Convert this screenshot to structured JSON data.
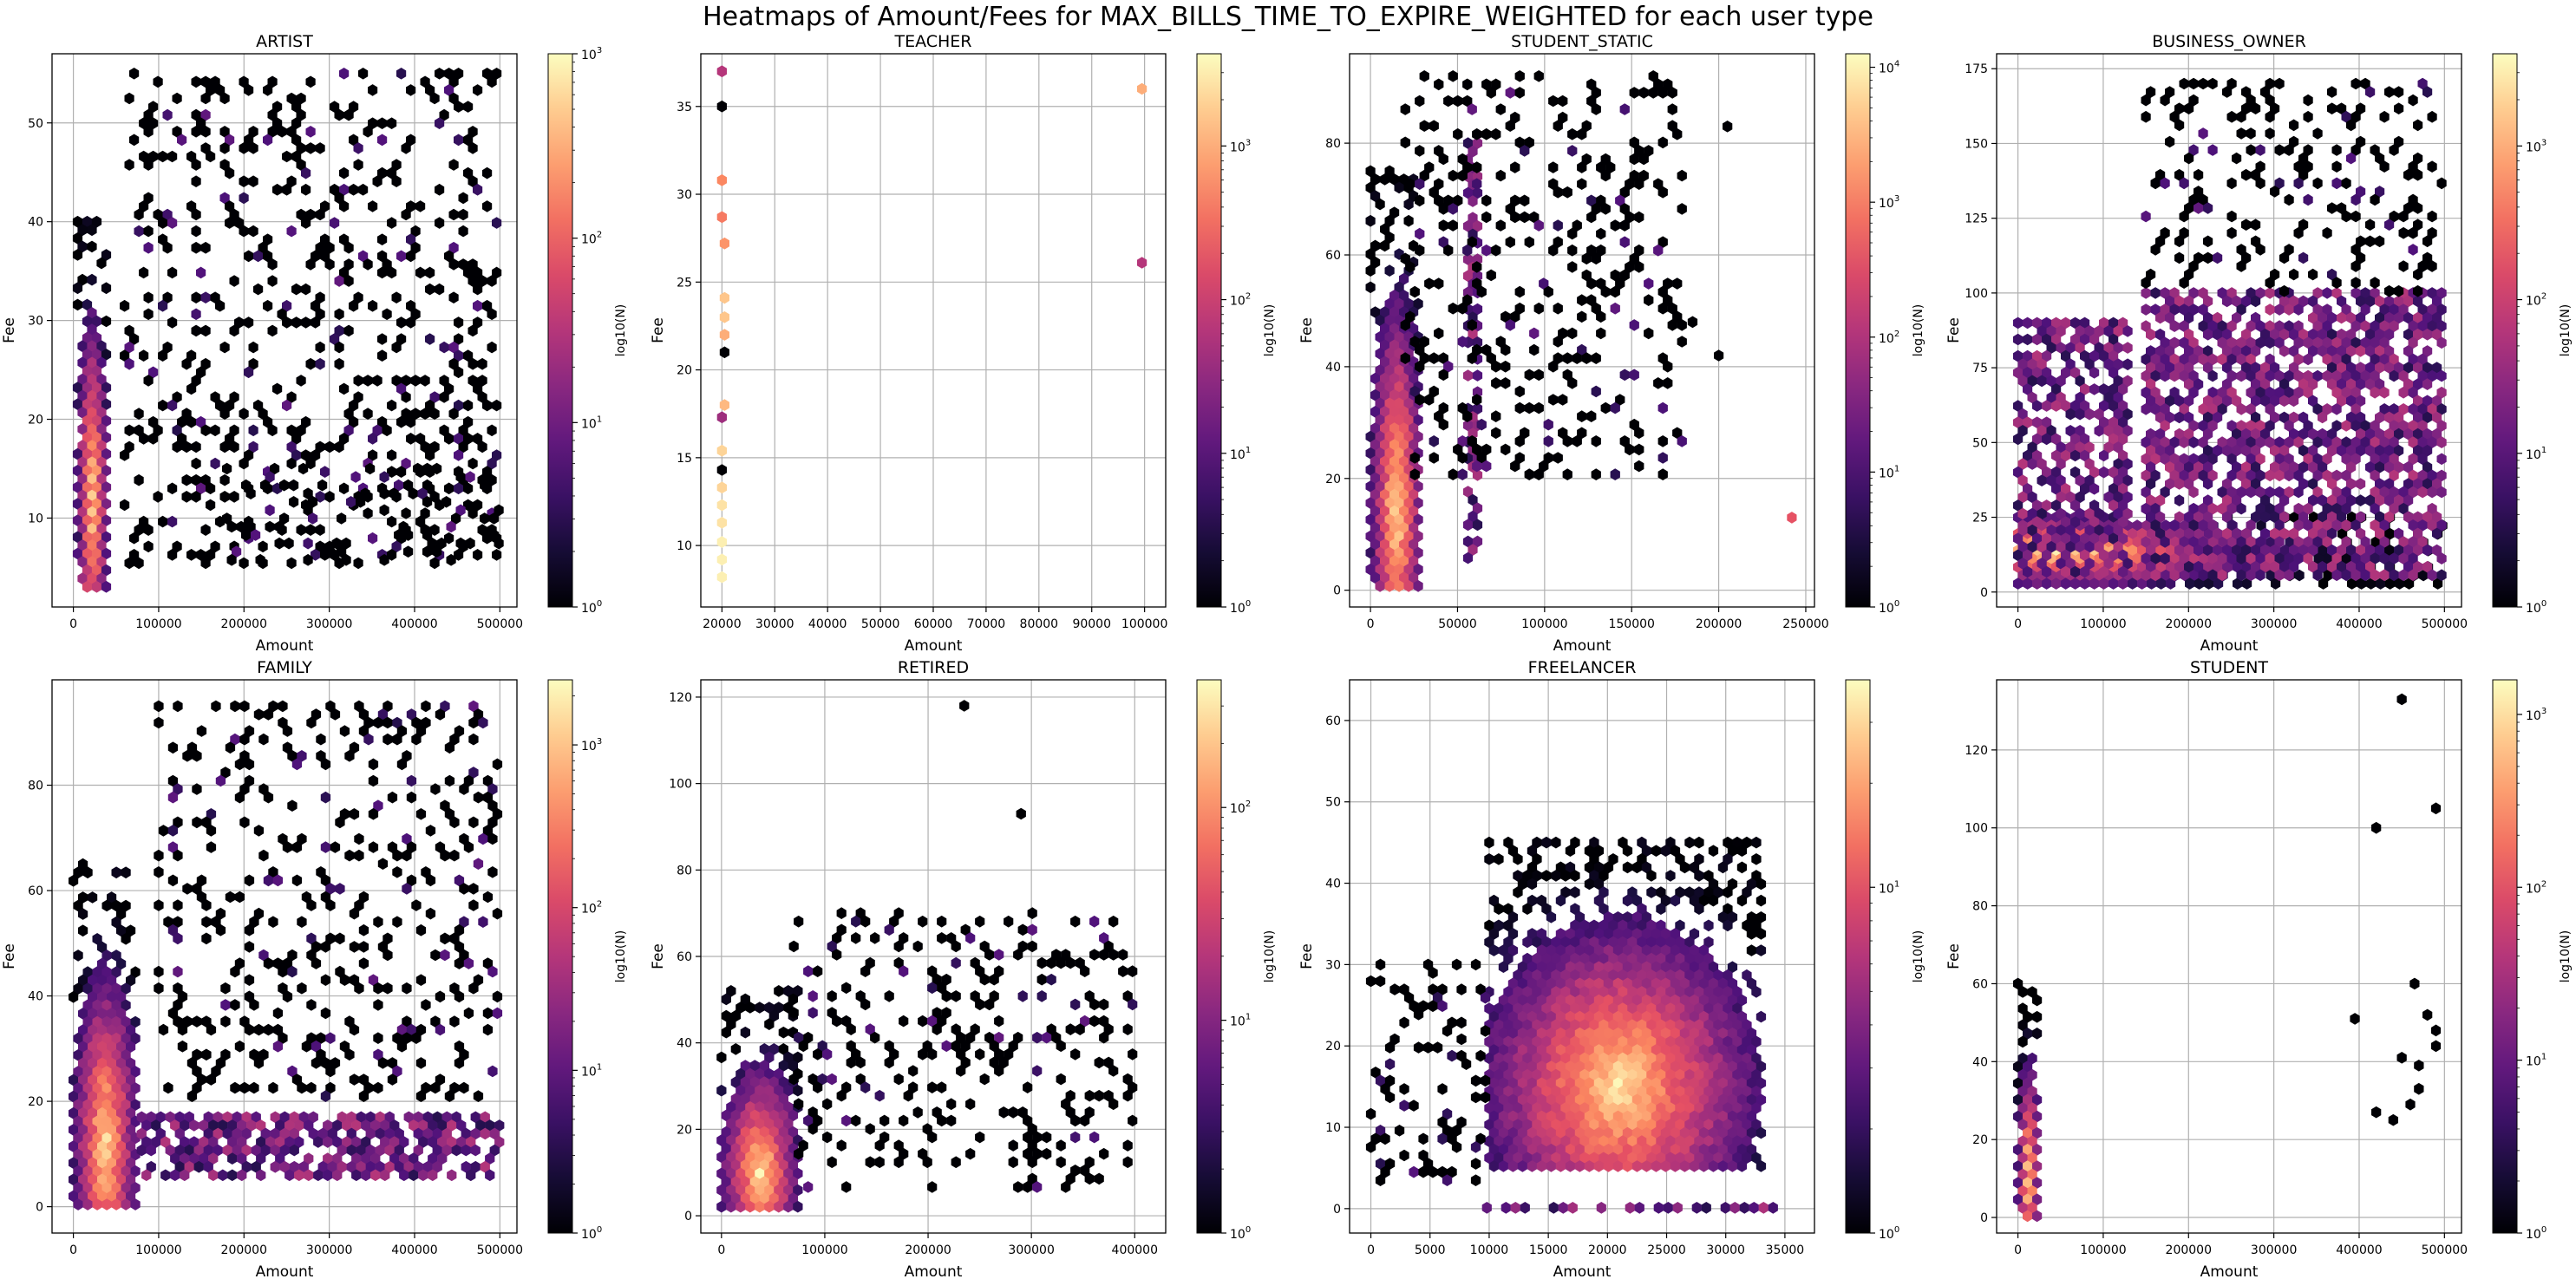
{
  "suptitle": "Heatmaps of Amount/Fees for MAX_BILLS_TIME_TO_EXPIRE_WEIGHTED for each user type",
  "chart_data": [
    {
      "type": "heatmap",
      "subtype": "hexbin",
      "title": "ARTIST",
      "xlabel": "Amount",
      "ylabel": "Fee",
      "colorbar_label": "log10(N)",
      "xlim": [
        -25000,
        520000
      ],
      "ylim": [
        1,
        57
      ],
      "xticks": [
        0,
        100000,
        200000,
        300000,
        400000,
        500000
      ],
      "yticks": [
        10,
        20,
        30,
        40,
        50
      ],
      "cbar_log_max": 3,
      "cbar_ticks": [
        "10^0",
        "10^1",
        "10^2",
        "10^3"
      ],
      "grid": true,
      "regions": [
        {
          "x": [
            5000,
            40000
          ],
          "y": [
            3,
            40
          ],
          "density": "high",
          "peak_y": 12
        },
        {
          "x": [
            60000,
            500000
          ],
          "y": [
            5,
            55
          ],
          "density": "sparse"
        },
        {
          "x": [
            180000,
            500000
          ],
          "y": [
            5,
            15
          ],
          "density": "sparse"
        }
      ]
    },
    {
      "type": "heatmap",
      "subtype": "hexbin",
      "title": "TEACHER",
      "xlabel": "Amount",
      "ylabel": "Fee",
      "colorbar_label": "log10(N)",
      "xlim": [
        16000,
        104000
      ],
      "ylim": [
        6.5,
        38
      ],
      "xticks": [
        20000,
        30000,
        40000,
        50000,
        60000,
        70000,
        80000,
        90000,
        100000
      ],
      "yticks": [
        10,
        15,
        20,
        25,
        30,
        35
      ],
      "cbar_log_max": 3.6,
      "cbar_ticks": [
        "10^0",
        "10^1",
        "10^2",
        "10^3"
      ],
      "grid": true,
      "points": [
        {
          "x": 20000,
          "y": 37,
          "log10n": 1.8
        },
        {
          "x": 20000,
          "y": 35,
          "log10n": 0
        },
        {
          "x": 20000,
          "y": 30.8,
          "log10n": 2.7
        },
        {
          "x": 20000,
          "y": 28.7,
          "log10n": 2.6
        },
        {
          "x": 20500,
          "y": 27.2,
          "log10n": 2.8
        },
        {
          "x": 20500,
          "y": 24.1,
          "log10n": 3.2
        },
        {
          "x": 20500,
          "y": 23,
          "log10n": 3.2
        },
        {
          "x": 20500,
          "y": 22,
          "log10n": 3.0
        },
        {
          "x": 20500,
          "y": 21,
          "log10n": 0
        },
        {
          "x": 20500,
          "y": 18,
          "log10n": 3.1
        },
        {
          "x": 20000,
          "y": 17.3,
          "log10n": 1.6
        },
        {
          "x": 20000,
          "y": 15.4,
          "log10n": 3.3
        },
        {
          "x": 20000,
          "y": 14.3,
          "log10n": 0
        },
        {
          "x": 20000,
          "y": 13.3,
          "log10n": 3.3
        },
        {
          "x": 20000,
          "y": 12.3,
          "log10n": 3.4
        },
        {
          "x": 20000,
          "y": 11.3,
          "log10n": 3.4
        },
        {
          "x": 20000,
          "y": 10.2,
          "log10n": 3.5
        },
        {
          "x": 20000,
          "y": 9.2,
          "log10n": 3.5
        },
        {
          "x": 20000,
          "y": 8.2,
          "log10n": 3.5
        },
        {
          "x": 99500,
          "y": 36,
          "log10n": 3.0
        },
        {
          "x": 99500,
          "y": 26.1,
          "log10n": 1.8
        }
      ]
    },
    {
      "type": "heatmap",
      "subtype": "hexbin",
      "title": "STUDENT_STATIC",
      "xlabel": "Amount",
      "ylabel": "Fee",
      "colorbar_label": "log10(N)",
      "xlim": [
        -12000,
        255000
      ],
      "ylim": [
        -3,
        96
      ],
      "xticks": [
        0,
        50000,
        100000,
        150000,
        200000,
        250000
      ],
      "yticks": [
        0,
        20,
        40,
        60,
        80
      ],
      "cbar_log_max": 4.1,
      "cbar_ticks": [
        "10^0",
        "10^1",
        "10^2",
        "10^3",
        "10^4"
      ],
      "grid": true,
      "regions": [
        {
          "x": [
            0,
            30000
          ],
          "y": [
            0,
            75
          ],
          "density": "high",
          "peak_y": 15
        },
        {
          "x": [
            56000,
            62000
          ],
          "y": [
            5,
            80
          ],
          "density": "medium"
        },
        {
          "x": [
            20000,
            180000
          ],
          "y": [
            20,
            92
          ],
          "density": "sparse"
        }
      ],
      "points": [
        {
          "x": 205000,
          "y": 83,
          "log10n": 0
        },
        {
          "x": 200000,
          "y": 42,
          "log10n": 0
        },
        {
          "x": 185000,
          "y": 48,
          "log10n": 0
        },
        {
          "x": 242000,
          "y": 13,
          "log10n": 2.6
        }
      ]
    },
    {
      "type": "heatmap",
      "subtype": "hexbin",
      "title": "BUSINESS_OWNER",
      "xlabel": "Amount",
      "ylabel": "Fee",
      "colorbar_label": "log10(N)",
      "xlim": [
        -25000,
        520000
      ],
      "ylim": [
        -5,
        180
      ],
      "xticks": [
        0,
        100000,
        200000,
        300000,
        400000,
        500000
      ],
      "yticks": [
        0,
        25,
        50,
        75,
        100,
        125,
        150,
        175
      ],
      "cbar_log_max": 3.6,
      "cbar_ticks": [
        "10^0",
        "10^1",
        "10^2",
        "10^3"
      ],
      "grid": true,
      "regions": [
        {
          "x": [
            0,
            500000
          ],
          "y": [
            2,
            25
          ],
          "density": "high",
          "peak_x": 50000
        },
        {
          "x": [
            0,
            130000
          ],
          "y": [
            5,
            90
          ],
          "density": "medium"
        },
        {
          "x": [
            150000,
            500000
          ],
          "y": [
            5,
            100
          ],
          "density": "medium"
        },
        {
          "x": [
            150000,
            500000
          ],
          "y": [
            100,
            170
          ],
          "density": "sparse"
        }
      ]
    },
    {
      "type": "heatmap",
      "subtype": "hexbin",
      "title": "FAMILY",
      "xlabel": "Amount",
      "ylabel": "Fee",
      "colorbar_label": "log10(N)",
      "xlim": [
        -25000,
        520000
      ],
      "ylim": [
        -5,
        100
      ],
      "xticks": [
        0,
        100000,
        200000,
        300000,
        400000,
        500000
      ],
      "yticks": [
        0,
        20,
        40,
        60,
        80
      ],
      "cbar_log_max": 3.4,
      "cbar_ticks": [
        "10^0",
        "10^1",
        "10^2",
        "10^3"
      ],
      "grid": true,
      "regions": [
        {
          "x": [
            0,
            75000
          ],
          "y": [
            0,
            65
          ],
          "density": "high",
          "peak_y": 12
        },
        {
          "x": [
            80000,
            500000
          ],
          "y": [
            5,
            17
          ],
          "density": "medium"
        },
        {
          "x": [
            100000,
            500000
          ],
          "y": [
            20,
            95
          ],
          "density": "sparse"
        }
      ]
    },
    {
      "type": "heatmap",
      "subtype": "hexbin",
      "title": "RETIRED",
      "xlabel": "Amount",
      "ylabel": "Fee",
      "colorbar_label": "log10(N)",
      "xlim": [
        -20000,
        430000
      ],
      "ylim": [
        -4,
        124
      ],
      "xticks": [
        0,
        100000,
        200000,
        300000,
        400000
      ],
      "yticks": [
        0,
        20,
        40,
        60,
        80,
        100,
        120
      ],
      "cbar_log_max": 2.6,
      "cbar_ticks": [
        "10^0",
        "10^1",
        "10^2"
      ],
      "grid": true,
      "regions": [
        {
          "x": [
            0,
            75000
          ],
          "y": [
            2,
            52
          ],
          "density": "high",
          "peak_y": 10
        },
        {
          "x": [
            70000,
            400000
          ],
          "y": [
            5,
            70
          ],
          "density": "sparse"
        }
      ],
      "points": [
        {
          "x": 235000,
          "y": 118,
          "log10n": 0
        },
        {
          "x": 290000,
          "y": 93,
          "log10n": 0
        }
      ]
    },
    {
      "type": "heatmap",
      "subtype": "hexbin",
      "title": "FREELANCER",
      "xlabel": "Amount",
      "ylabel": "Fee",
      "colorbar_label": "log10(N)",
      "xlim": [
        -1800,
        37500
      ],
      "ylim": [
        -3,
        65
      ],
      "xticks": [
        0,
        5000,
        10000,
        15000,
        20000,
        25000,
        30000,
        35000
      ],
      "yticks": [
        0,
        10,
        20,
        30,
        40,
        50,
        60
      ],
      "cbar_log_max": 1.6,
      "cbar_ticks": [
        "10^0",
        "10^1"
      ],
      "grid": true,
      "regions": [
        {
          "x": [
            10000,
            33000
          ],
          "y": [
            5,
            45
          ],
          "density": "high",
          "peak_x": 21000,
          "peak_y": 15
        },
        {
          "x": [
            0,
            10000
          ],
          "y": [
            3,
            30
          ],
          "density": "sparse"
        },
        {
          "x": [
            9000,
            34000
          ],
          "y": [
            0,
            0
          ],
          "density": "medium"
        }
      ]
    },
    {
      "type": "heatmap",
      "subtype": "hexbin",
      "title": "STUDENT",
      "xlabel": "Amount",
      "ylabel": "Fee",
      "colorbar_label": "log10(N)",
      "xlim": [
        -25000,
        520000
      ],
      "ylim": [
        -4,
        138
      ],
      "xticks": [
        0,
        100000,
        200000,
        300000,
        400000,
        500000
      ],
      "yticks": [
        0,
        20,
        40,
        60,
        80,
        100,
        120
      ],
      "cbar_log_max": 3.2,
      "cbar_ticks": [
        "10^0",
        "10^1",
        "10^2",
        "10^3"
      ],
      "grid": true,
      "regions": [
        {
          "x": [
            0,
            25000
          ],
          "y": [
            0,
            60
          ],
          "density": "high",
          "peak_y": 10
        }
      ],
      "points": [
        {
          "x": 450000,
          "y": 133,
          "log10n": 0
        },
        {
          "x": 490000,
          "y": 105,
          "log10n": 0
        },
        {
          "x": 420000,
          "y": 100,
          "log10n": 0
        },
        {
          "x": 395000,
          "y": 51,
          "log10n": 0
        },
        {
          "x": 420000,
          "y": 27,
          "log10n": 0
        },
        {
          "x": 440000,
          "y": 25,
          "log10n": 0
        },
        {
          "x": 450000,
          "y": 41,
          "log10n": 0
        },
        {
          "x": 465000,
          "y": 60,
          "log10n": 0
        },
        {
          "x": 470000,
          "y": 39,
          "log10n": 0
        },
        {
          "x": 480000,
          "y": 52,
          "log10n": 0
        },
        {
          "x": 490000,
          "y": 44,
          "log10n": 0
        },
        {
          "x": 490000,
          "y": 48,
          "log10n": 0
        },
        {
          "x": 460000,
          "y": 29,
          "log10n": 0
        },
        {
          "x": 470000,
          "y": 33,
          "log10n": 0
        }
      ]
    }
  ]
}
